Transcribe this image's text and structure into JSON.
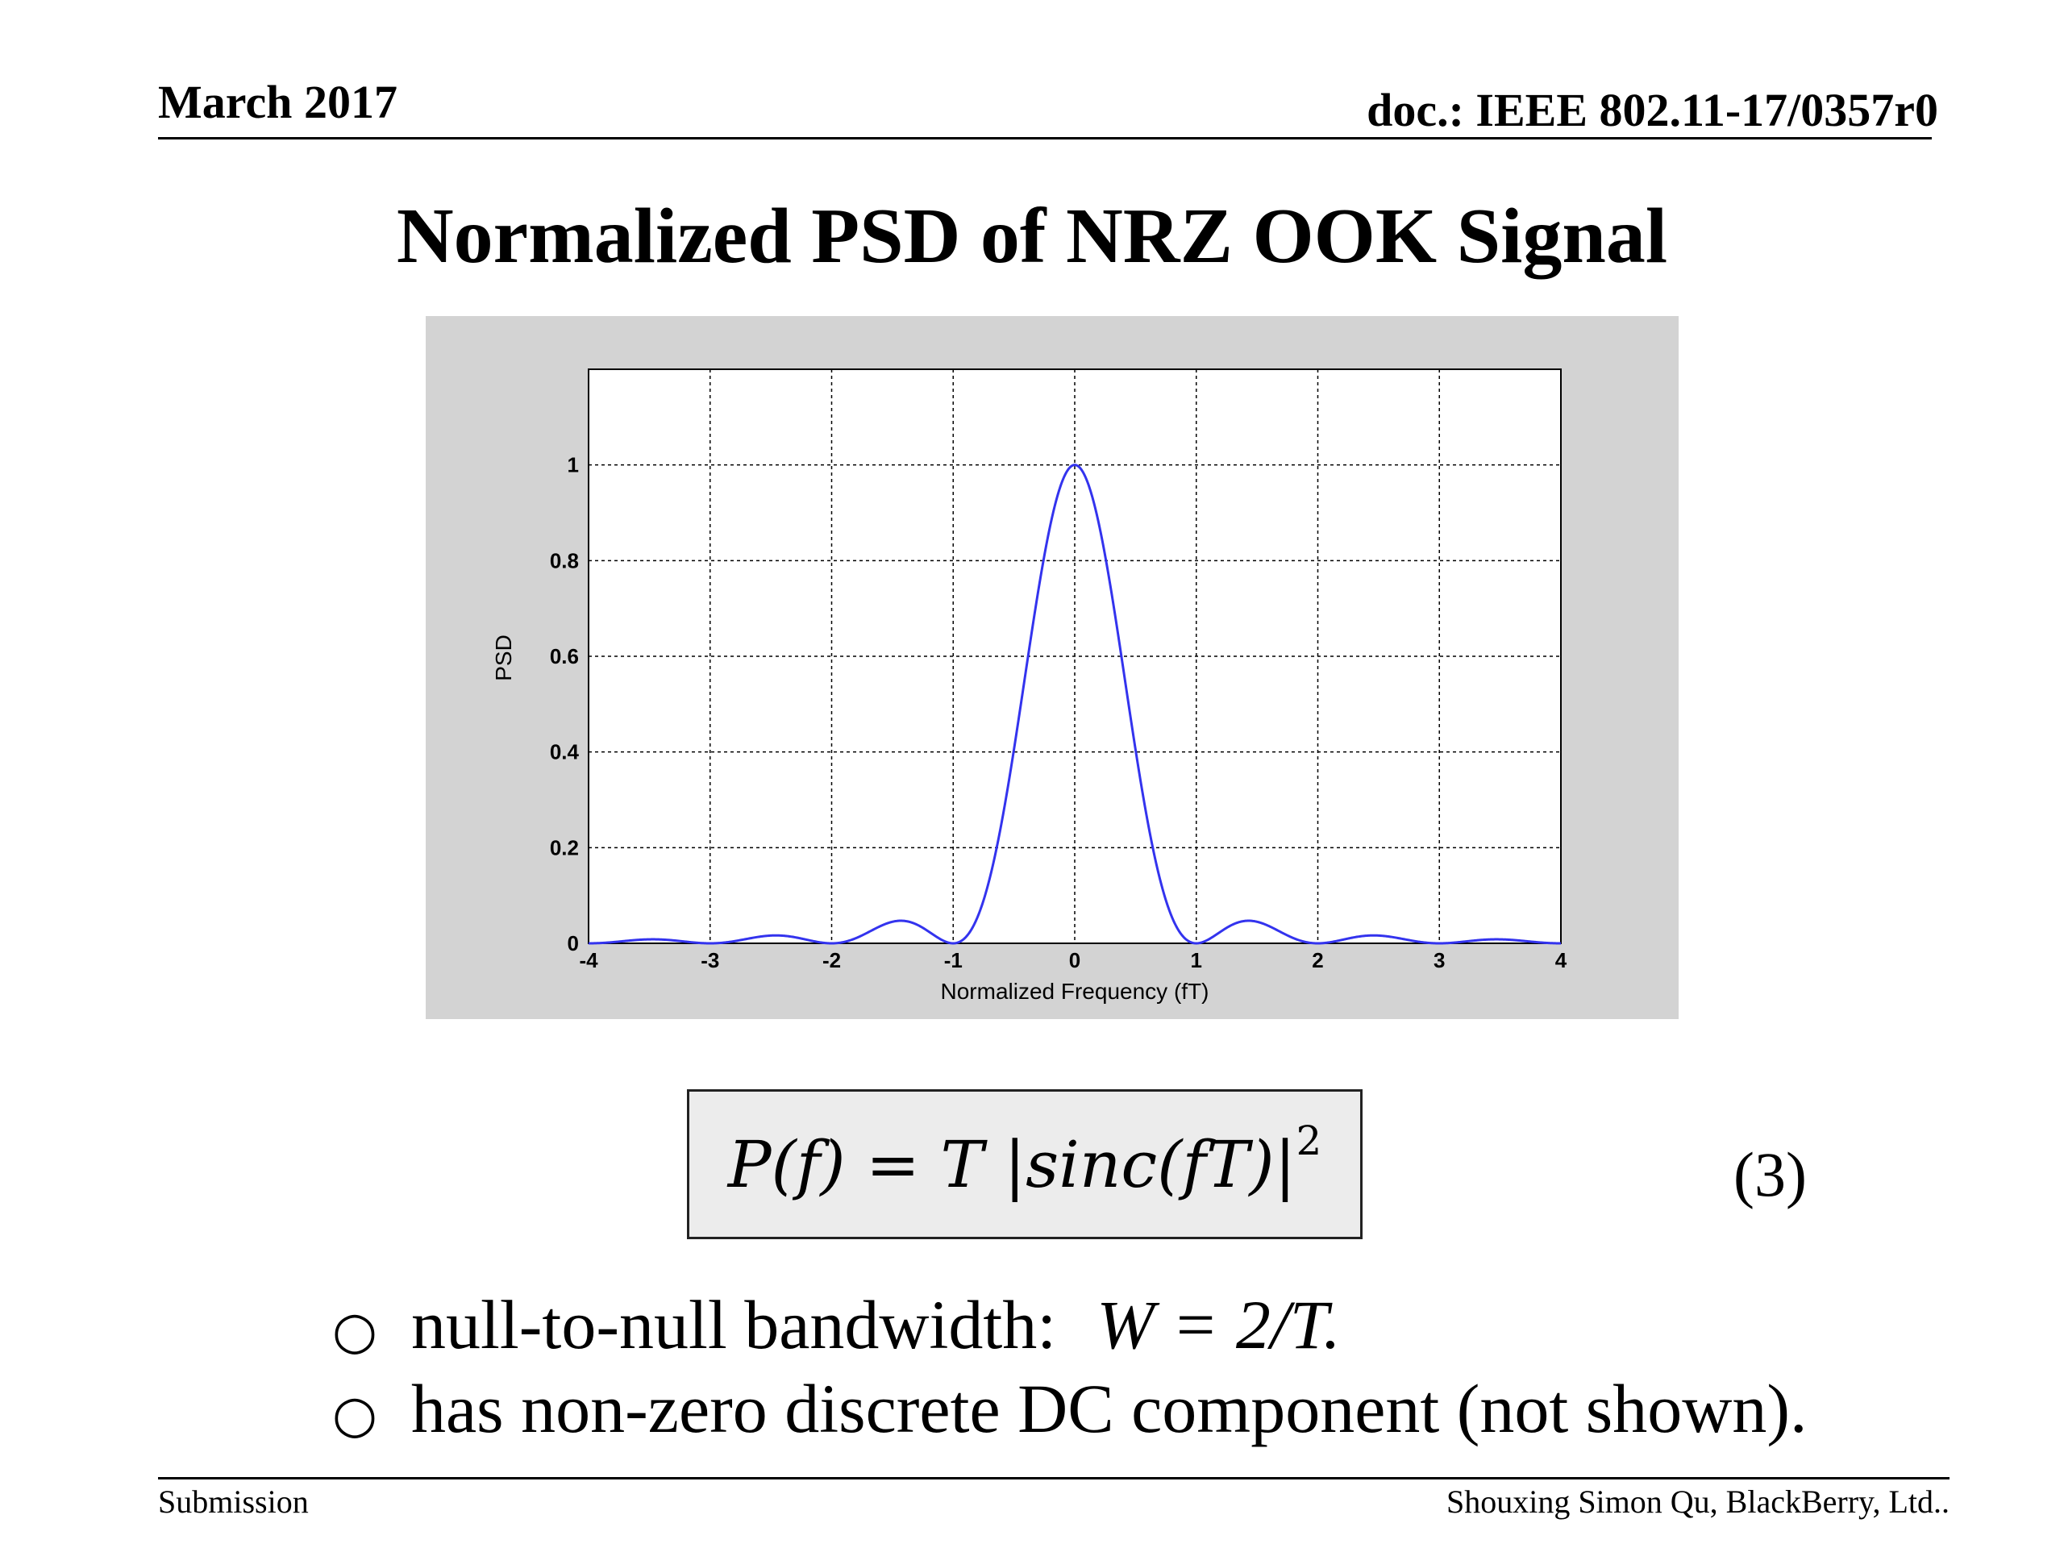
{
  "header": {
    "date": "March 2017",
    "doc_id": "doc.: IEEE 802.11-17/0357r0"
  },
  "slide_title": "Normalized PSD of NRZ OOK Signal",
  "equation": {
    "formula": "P(f) = T |sinc(fT)|",
    "exponent": "2",
    "number": "(3)"
  },
  "bullets": [
    {
      "text": "null-to-null bandwidth:",
      "formula": "W = 2/T."
    },
    {
      "text": "has non-zero discrete DC component (not shown).",
      "formula": ""
    }
  ],
  "footer": {
    "left": "Submission",
    "right": "Shouxing Simon Qu, BlackBerry, Ltd.."
  },
  "chart_data": {
    "type": "line",
    "title": "",
    "xlabel": "Normalized Frequency (fT)",
    "ylabel": "PSD",
    "xlim": [
      -4,
      4
    ],
    "ylim": [
      0,
      1.2
    ],
    "xticks": [
      -4,
      -3,
      -2,
      -1,
      0,
      1,
      2,
      3,
      4
    ],
    "yticks": [
      0,
      0.2,
      0.4,
      0.6,
      0.8,
      1
    ],
    "ytick_labels": [
      "0",
      "0.2",
      "0.4",
      "0.6",
      "0.8",
      "1"
    ],
    "grid": true,
    "grid_style": "dotted",
    "line_color": "#3333ee",
    "series": [
      {
        "function": "sinc(fT)^2",
        "x": [
          -4,
          -3.5,
          -3,
          -2.5,
          -2,
          -1.5,
          -1.43,
          -1,
          -0.75,
          -0.5,
          -0.25,
          0,
          0.25,
          0.5,
          0.75,
          1,
          1.43,
          1.5,
          2,
          2.5,
          3,
          3.5,
          4
        ],
        "values": [
          0,
          0.008,
          0,
          0.016,
          0,
          0.045,
          0.047,
          0,
          0.09,
          0.405,
          0.811,
          1,
          0.811,
          0.405,
          0.09,
          0,
          0.047,
          0.045,
          0,
          0.016,
          0,
          0.008,
          0
        ]
      }
    ]
  }
}
